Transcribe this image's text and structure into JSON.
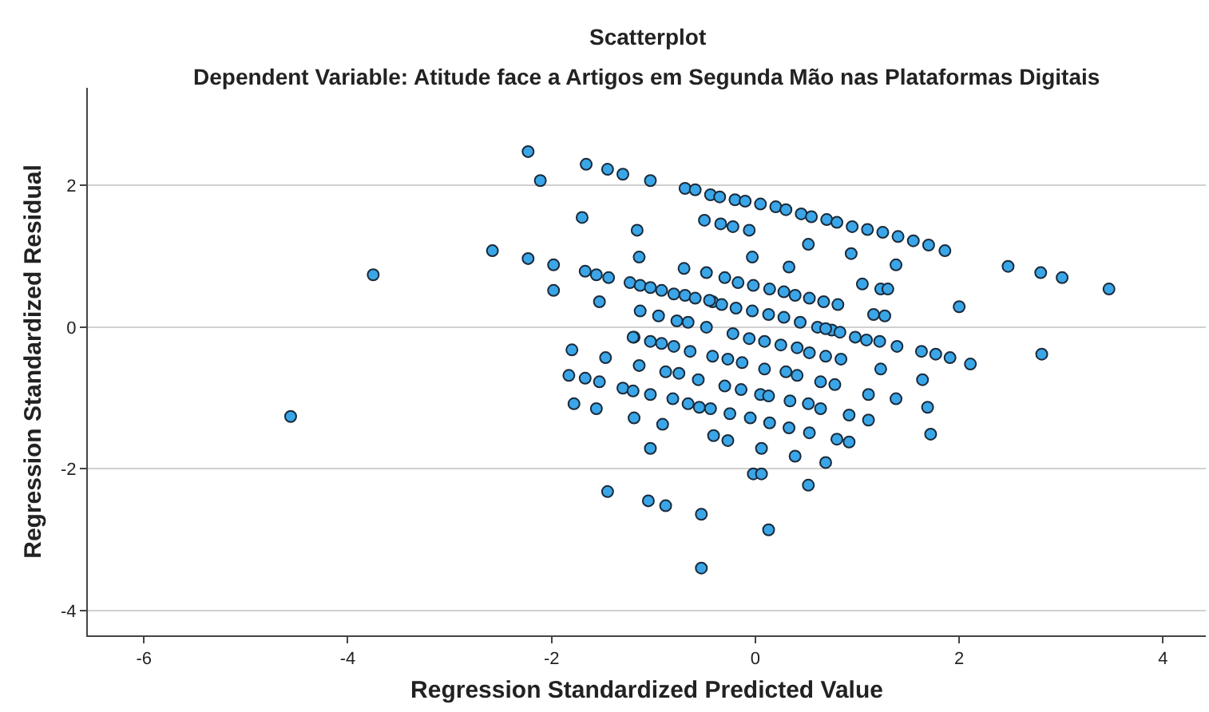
{
  "chart_data": {
    "type": "scatter",
    "title": "Scatterplot",
    "subtitle": "Dependent Variable: Atitude face a Artigos em Segunda Mão nas Plataformas Digitais",
    "xlabel": "Regression Standardized Predicted Value",
    "ylabel": "Regression Standardized Residual",
    "xlim": [
      -6.55,
      4.42
    ],
    "ylim": [
      -4.35,
      3.38
    ],
    "xticks": [
      -6,
      -4,
      -2,
      0,
      2,
      4
    ],
    "yticks": [
      -4,
      -2,
      0,
      2
    ],
    "grid": "y",
    "marker": "circle",
    "series": [
      {
        "color": "#3aa6e8",
        "x": [
          -4.56,
          -3.75,
          -2.58,
          -2.23,
          -2.11,
          -1.66,
          -1.45,
          -1.3,
          -1.03,
          -0.69,
          -0.59,
          -0.44,
          -1.7,
          -1.16,
          -0.5,
          -2.23,
          -1.98,
          -1.98,
          -1.14,
          -1.67,
          -1.56,
          -1.44,
          -1.23,
          -1.13,
          -1.03,
          -0.92,
          -0.8,
          -0.69,
          -0.59,
          -0.42,
          -1.53,
          -0.7,
          -0.48,
          -1.13,
          -0.95,
          -0.77,
          -0.66,
          -0.48,
          -1.19,
          -1.8,
          -1.47,
          -1.14,
          -1.2,
          -1.03,
          -0.92,
          -0.8,
          -0.64,
          -0.42,
          -0.88,
          -0.75,
          -0.56,
          -1.83,
          -1.67,
          -1.53,
          -1.3,
          -1.2,
          -1.03,
          -0.81,
          -0.66,
          -0.55,
          -0.44,
          -1.78,
          -1.56,
          -1.19,
          -0.91,
          -1.03,
          -1.45,
          -1.05,
          -0.88,
          -0.53,
          -0.53,
          -0.35,
          -0.2,
          -0.1,
          0.05,
          0.2,
          0.3,
          0.45,
          0.55,
          0.7,
          0.8,
          0.95,
          1.1,
          1.25,
          1.4,
          1.55,
          1.7,
          1.86,
          -0.34,
          -0.22,
          -0.06,
          0.52,
          0.94,
          1.38,
          0.33,
          -0.03,
          2.48,
          2.8,
          3.01,
          3.47,
          2.0,
          2.81,
          -0.3,
          -0.17,
          -0.02,
          0.14,
          0.28,
          0.39,
          0.53,
          0.67,
          0.81,
          1.05,
          1.23,
          1.3,
          1.16,
          1.27,
          -0.45,
          -0.33,
          -0.19,
          -0.03,
          0.13,
          0.28,
          0.44,
          0.61,
          0.75,
          -0.22,
          -0.06,
          0.09,
          0.25,
          0.41,
          0.53,
          0.69,
          0.83,
          0.98,
          1.09,
          1.22,
          1.39,
          1.63,
          1.77,
          1.91,
          2.11,
          0.69,
          0.84,
          -0.27,
          -0.13,
          0.09,
          0.3,
          0.41,
          0.64,
          0.78,
          1.23,
          1.64,
          1.11,
          1.38,
          1.69,
          1.72,
          -0.3,
          -0.14,
          0.05,
          0.13,
          0.34,
          0.52,
          0.64,
          0.92,
          1.11,
          -0.25,
          -0.05,
          0.14,
          0.33,
          0.53,
          0.8,
          0.92,
          -0.41,
          -0.27,
          0.06,
          0.39,
          0.69,
          -0.02,
          0.06,
          0.52,
          0.13
        ],
        "values": [
          -1.26,
          0.74,
          1.08,
          2.48,
          2.07,
          2.3,
          2.23,
          2.16,
          2.07,
          1.96,
          1.94,
          1.87,
          1.55,
          1.37,
          1.51,
          0.97,
          0.88,
          0.52,
          0.99,
          0.79,
          0.74,
          0.7,
          0.63,
          0.59,
          0.56,
          0.52,
          0.47,
          0.45,
          0.41,
          0.36,
          0.36,
          0.83,
          0.77,
          0.23,
          0.16,
          0.09,
          0.07,
          0,
          -0.14,
          -0.32,
          -0.43,
          -0.54,
          -0.14,
          -0.2,
          -0.23,
          -0.27,
          -0.34,
          -0.41,
          -0.63,
          -0.65,
          -0.74,
          -0.68,
          -0.72,
          -0.77,
          -0.86,
          -0.9,
          -0.95,
          -1.01,
          -1.08,
          -1.13,
          -1.15,
          -1.08,
          -1.15,
          -1.28,
          -1.37,
          -1.71,
          -2.32,
          -2.45,
          -2.52,
          -2.64,
          -3.4,
          1.84,
          1.8,
          1.78,
          1.74,
          1.7,
          1.66,
          1.6,
          1.56,
          1.52,
          1.48,
          1.42,
          1.38,
          1.34,
          1.28,
          1.22,
          1.16,
          1.08,
          1.46,
          1.42,
          1.37,
          1.17,
          1.04,
          0.88,
          0.85,
          0.99,
          0.86,
          0.77,
          0.7,
          0.54,
          0.29,
          -0.38,
          0.7,
          0.63,
          0.59,
          0.54,
          0.5,
          0.45,
          0.41,
          0.36,
          0.32,
          0.61,
          0.54,
          0.54,
          0.18,
          0.16,
          0.38,
          0.32,
          0.27,
          0.23,
          0.18,
          0.14,
          0.07,
          0,
          -0.04,
          -0.09,
          -0.16,
          -0.2,
          -0.25,
          -0.29,
          -0.36,
          -0.02,
          -0.07,
          -0.14,
          -0.18,
          -0.2,
          -0.27,
          -0.34,
          -0.38,
          -0.43,
          -0.52,
          -0.41,
          -0.45,
          -0.45,
          -0.5,
          -0.59,
          -0.63,
          -0.68,
          -0.77,
          -0.81,
          -0.59,
          -0.74,
          -0.95,
          -1.01,
          -1.13,
          -1.51,
          -0.83,
          -0.88,
          -0.95,
          -0.97,
          -1.04,
          -1.08,
          -1.15,
          -1.24,
          -1.31,
          -1.22,
          -1.28,
          -1.35,
          -1.42,
          -1.49,
          -1.58,
          -1.62,
          -1.53,
          -1.6,
          -1.71,
          -1.82,
          -1.91,
          -2.07,
          -2.07,
          -2.23,
          -2.86
        ]
      }
    ]
  }
}
